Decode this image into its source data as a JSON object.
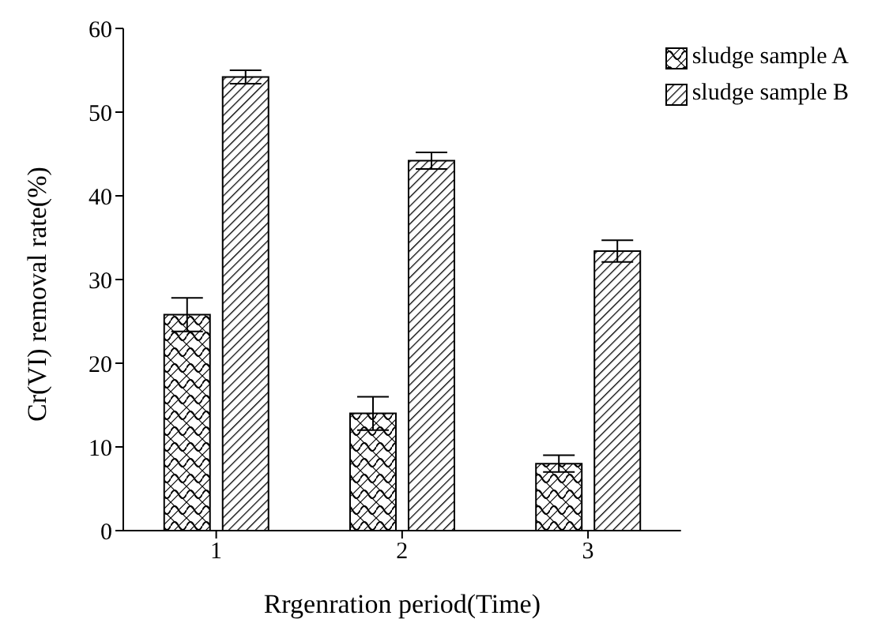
{
  "chart_data": {
    "type": "bar",
    "xlabel": "Rrgenration period(Time)",
    "ylabel": "Cr(VI) removal rate(%)",
    "categories": [
      "1",
      "2",
      "3"
    ],
    "series": [
      {
        "name": "sludge sample A",
        "color": "#000000",
        "values": [
          25.8,
          14,
          8
        ],
        "errors": [
          2,
          2,
          1
        ]
      },
      {
        "name": "sludge sample B",
        "color": "#000000",
        "values": [
          54.2,
          44.2,
          33.4
        ],
        "errors": [
          0.8,
          1,
          1.3
        ]
      }
    ],
    "ylim": [
      0,
      60
    ],
    "yticks": [
      0,
      10,
      20,
      30,
      40,
      50,
      60
    ],
    "grid": false,
    "legend": "top right"
  }
}
